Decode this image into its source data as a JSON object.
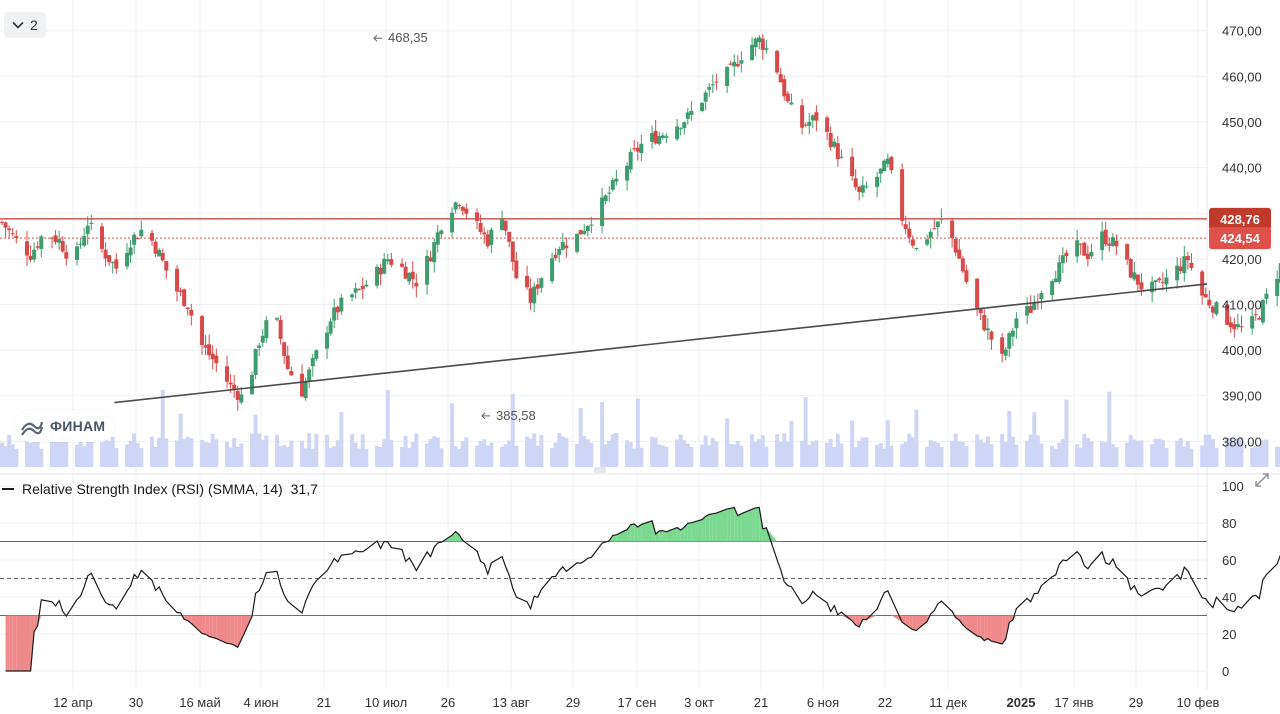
{
  "toolbar": {
    "collapse_label": "2"
  },
  "logo": {
    "text": "ФИНАМ"
  },
  "colors": {
    "up": "#3f9c6e",
    "down": "#d84a4a",
    "volume": "#cfd6f5",
    "grid": "#eef0f3",
    "rsi_line": "#1a1a1a",
    "rsi_bands": "#6b6b6b",
    "trend": "#4a4a4a",
    "last_price_bg": "#c0392b",
    "level_bg": "#e0504a"
  },
  "rsi": {
    "legend": "Relative Strength Index (RSI) (SMMA, 14)",
    "value": "31,7",
    "levels": {
      "upper": 70,
      "middle": 50,
      "lower": 30
    }
  },
  "chart_data": {
    "type": "candlestick",
    "price_axis": {
      "range": [
        377,
        473
      ],
      "ticks": [
        "470,00",
        "460,00",
        "450,00",
        "440,00",
        "430,00",
        "420,00",
        "410,00",
        "400,00",
        "390,00",
        "380,00"
      ]
    },
    "rsi_axis": {
      "range": [
        0,
        100
      ],
      "ticks": [
        "100",
        "80",
        "60",
        "40",
        "20",
        "0"
      ]
    },
    "x_axis": {
      "ticks": [
        "12 апр",
        "30",
        "16 май",
        "4 июн",
        "21",
        "10 июл",
        "26",
        "13 авг",
        "29",
        "17 сен",
        "3 окт",
        "21",
        "6 ноя",
        "22",
        "11 дек",
        "2025",
        "17 янв",
        "29",
        "10 фев"
      ]
    },
    "price_tags": {
      "last": "428,76",
      "level": "424,54"
    },
    "annotations": {
      "max_label": "468,35",
      "min_label": "385,58"
    },
    "horizontal_levels": [
      428.76,
      424.54
    ],
    "trend_line": {
      "from": [
        "2024-04-25",
        388.5
      ],
      "to": [
        "2025-02-14",
        414.5
      ]
    },
    "anchor_closes": [
      [
        0,
        428
      ],
      [
        4,
        424
      ],
      [
        8,
        421
      ],
      [
        12,
        426
      ],
      [
        16,
        424
      ],
      [
        20,
        419
      ],
      [
        24,
        428
      ],
      [
        28,
        422
      ],
      [
        32,
        418
      ],
      [
        36,
        424
      ],
      [
        40,
        427
      ],
      [
        44,
        421
      ],
      [
        48,
        414
      ],
      [
        52,
        410
      ],
      [
        56,
        401
      ],
      [
        60,
        397
      ],
      [
        64,
        392
      ],
      [
        68,
        389
      ],
      [
        72,
        402
      ],
      [
        76,
        409
      ],
      [
        80,
        396
      ],
      [
        84,
        391
      ],
      [
        88,
        399
      ],
      [
        92,
        407
      ],
      [
        96,
        411
      ],
      [
        100,
        413
      ],
      [
        104,
        416
      ],
      [
        108,
        420
      ],
      [
        112,
        418
      ],
      [
        116,
        415
      ],
      [
        120,
        421
      ],
      [
        124,
        430
      ],
      [
        128,
        433
      ],
      [
        132,
        428
      ],
      [
        136,
        424
      ],
      [
        140,
        430
      ],
      [
        144,
        416
      ],
      [
        148,
        411
      ],
      [
        152,
        418
      ],
      [
        156,
        423
      ],
      [
        160,
        424
      ],
      [
        164,
        428
      ],
      [
        168,
        432
      ],
      [
        172,
        437
      ],
      [
        176,
        442
      ],
      [
        180,
        446
      ],
      [
        184,
        447
      ],
      [
        188,
        449
      ],
      [
        192,
        451
      ],
      [
        196,
        455
      ],
      [
        200,
        459
      ],
      [
        204,
        461
      ],
      [
        208,
        466
      ],
      [
        212,
        468
      ],
      [
        216,
        464
      ],
      [
        220,
        454
      ],
      [
        224,
        449
      ],
      [
        228,
        451
      ],
      [
        232,
        446
      ],
      [
        236,
        440
      ],
      [
        240,
        434
      ],
      [
        244,
        437
      ],
      [
        248,
        441
      ],
      [
        252,
        429
      ],
      [
        256,
        422
      ],
      [
        260,
        426
      ],
      [
        264,
        429
      ],
      [
        268,
        420
      ],
      [
        272,
        410
      ],
      [
        276,
        404
      ],
      [
        280,
        398
      ],
      [
        284,
        407
      ],
      [
        288,
        409
      ],
      [
        292,
        415
      ],
      [
        296,
        418
      ],
      [
        300,
        423
      ],
      [
        304,
        421
      ],
      [
        308,
        425
      ],
      [
        312,
        423
      ],
      [
        316,
        417
      ],
      [
        320,
        413
      ],
      [
        324,
        414
      ],
      [
        328,
        417
      ],
      [
        332,
        420
      ],
      [
        336,
        412
      ],
      [
        340,
        409
      ],
      [
        344,
        406
      ],
      [
        348,
        404
      ],
      [
        352,
        408
      ],
      [
        356,
        415
      ],
      [
        360,
        422
      ],
      [
        364,
        427
      ],
      [
        368,
        432
      ],
      [
        372,
        440
      ],
      [
        376,
        436
      ],
      [
        380,
        433
      ],
      [
        384,
        435
      ],
      [
        388,
        432
      ],
      [
        392,
        428
      ],
      [
        396,
        421
      ],
      [
        400,
        418
      ],
      [
        404,
        415
      ],
      [
        408,
        412
      ],
      [
        412,
        414
      ],
      [
        416,
        418
      ],
      [
        420,
        421
      ],
      [
        424,
        418
      ],
      [
        428,
        414
      ],
      [
        432,
        416
      ],
      [
        436,
        422
      ],
      [
        440,
        425
      ],
      [
        444,
        430
      ],
      [
        448,
        434
      ],
      [
        452,
        432
      ],
      [
        456,
        422
      ],
      [
        460,
        414
      ],
      [
        464,
        412
      ],
      [
        468,
        416
      ],
      [
        472,
        420
      ],
      [
        476,
        424
      ],
      [
        480,
        426
      ],
      [
        484,
        423
      ],
      [
        488,
        421
      ],
      [
        492,
        418
      ],
      [
        496,
        414
      ],
      [
        500,
        416
      ],
      [
        504,
        420
      ],
      [
        508,
        416
      ],
      [
        512,
        422
      ],
      [
        516,
        426
      ],
      [
        520,
        430
      ],
      [
        524,
        434
      ],
      [
        528,
        430
      ],
      [
        532,
        426
      ],
      [
        536,
        431
      ],
      [
        540,
        436
      ],
      [
        544,
        442
      ],
      [
        548,
        446
      ],
      [
        552,
        450
      ],
      [
        556,
        448
      ],
      [
        560,
        451
      ],
      [
        564,
        450
      ],
      [
        568,
        447
      ],
      [
        572,
        440
      ],
      [
        576,
        436
      ],
      [
        580,
        433
      ],
      [
        584,
        431
      ],
      [
        588,
        437
      ],
      [
        592,
        430
      ],
      [
        596,
        424
      ],
      [
        600,
        422
      ],
      [
        604,
        418
      ],
      [
        608,
        416
      ],
      [
        612,
        412
      ],
      [
        616,
        420
      ],
      [
        620,
        426
      ]
    ]
  }
}
